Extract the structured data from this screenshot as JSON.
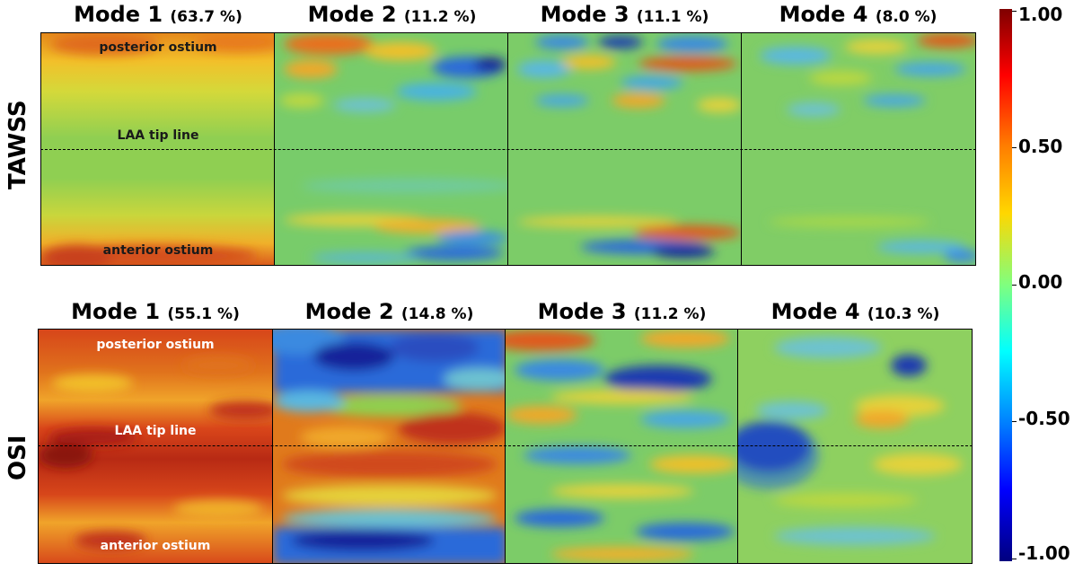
{
  "rows": [
    {
      "label": "TAWSS",
      "panels": [
        {
          "mode": "Mode 1",
          "pct": "(63.7 %)"
        },
        {
          "mode": "Mode 2",
          "pct": "(11.2 %)"
        },
        {
          "mode": "Mode 3",
          "pct": "(11.1 %)"
        },
        {
          "mode": "Mode 4",
          "pct": "(8.0 %)"
        }
      ]
    },
    {
      "label": "OSI",
      "panels": [
        {
          "mode": "Mode 1",
          "pct": "(55.1 %)"
        },
        {
          "mode": "Mode 2",
          "pct": "(14.8 %)"
        },
        {
          "mode": "Mode 3",
          "pct": "(11.2 %)"
        },
        {
          "mode": "Mode 4",
          "pct": "(10.3 %)"
        }
      ]
    }
  ],
  "annotations": {
    "top": "posterior ostium",
    "middle": "LAA tip line",
    "bottom": "anterior ostium"
  },
  "colorbar": {
    "ticks": [
      "1.00",
      "0.50",
      "0.00",
      "-0.50",
      "-1.00"
    ],
    "colormap": "jet",
    "range": [
      -1.0,
      1.0
    ]
  },
  "chart_data": {
    "type": "heatmap",
    "layout": "2 rows x 4 columns of POD mode maps",
    "value_range": [
      -1.0,
      1.0
    ],
    "panels": [
      {
        "row": "TAWSS",
        "mode": "Mode 1",
        "energy": "(63.7 %)"
      },
      {
        "row": "TAWSS",
        "mode": "Mode 2",
        "energy": "(11.2 %)"
      },
      {
        "row": "TAWSS",
        "mode": "Mode 3",
        "energy": "(11.1 %)"
      },
      {
        "row": "TAWSS",
        "mode": "Mode 4",
        "energy": "(8.0 %)"
      },
      {
        "row": "OSI",
        "mode": "Mode 1",
        "energy": "(55.1 %)"
      },
      {
        "row": "OSI",
        "mode": "Mode 2",
        "energy": "(14.8 %)"
      },
      {
        "row": "OSI",
        "mode": "Mode 3",
        "energy": "(11.2 %)"
      },
      {
        "row": "OSI",
        "mode": "Mode 4",
        "energy": "(10.3 %)"
      }
    ]
  }
}
